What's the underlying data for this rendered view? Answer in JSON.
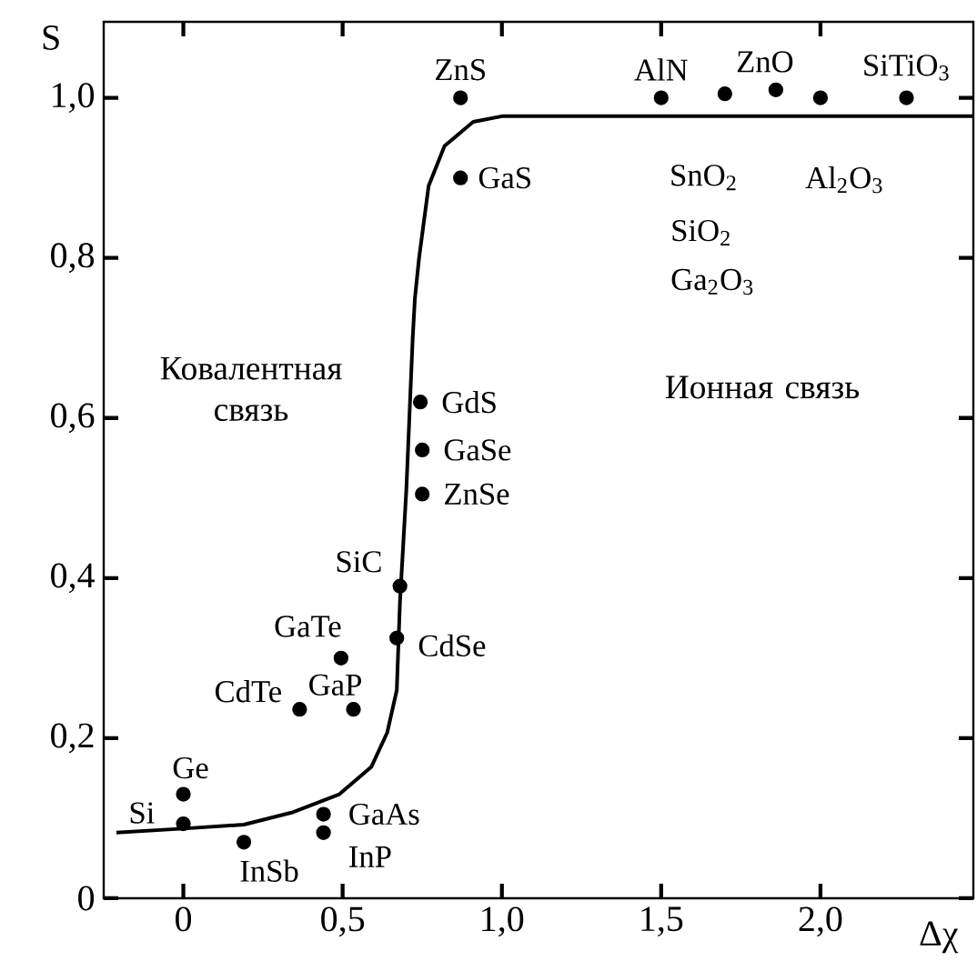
{
  "chart_data": {
    "type": "scatter",
    "xlabel": "Δχ",
    "ylabel": "S",
    "xlim": [
      -0.25,
      2.48
    ],
    "ylim": [
      0,
      1.095
    ],
    "xticks": [
      0,
      {
        "value": 0.5,
        "label": "0,5"
      },
      {
        "value": 1.0,
        "label": "1,0"
      },
      {
        "value": 1.5,
        "label": "1,5"
      },
      {
        "value": 2.0,
        "label": "2,0"
      }
    ],
    "yticks": [
      0,
      {
        "value": 0.2,
        "label": "0,2"
      },
      {
        "value": 0.4,
        "label": "0,4"
      },
      {
        "value": 0.6,
        "label": "0,6"
      },
      {
        "value": 0.8,
        "label": "0,8"
      },
      {
        "value": 1.0,
        "label": "1,0"
      }
    ],
    "marker": "circle",
    "series": [
      {
        "type": "scatter",
        "color": "#000000",
        "x": [
          0.87,
          1.5,
          1.86,
          2.27,
          1.7,
          2.0,
          0.87,
          0.744,
          0.75,
          0.75,
          0.68,
          0.67,
          0.495,
          0.365,
          0.534,
          0,
          0,
          0.19,
          0.44,
          0.44
        ],
        "values": [
          1.0,
          1.0,
          1.01,
          1.0,
          1.005,
          1.0,
          0.9,
          0.62,
          0.56,
          0.505,
          0.39,
          0.325,
          0.3,
          0.236,
          0.236,
          0.13,
          0.093,
          0.07,
          0.105,
          0.082
        ]
      },
      {
        "type": "line",
        "marker": "none",
        "color": "#000000",
        "x": [
          -0.21,
          0,
          0.19,
          0.34,
          0.49,
          0.59,
          0.64,
          0.67,
          0.68,
          0.7,
          0.72,
          0.727,
          0.74,
          0.77,
          0.82,
          0.91,
          1.0,
          2.48
        ],
        "values": [
          0.082,
          0.087,
          0.092,
          0.107,
          0.13,
          0.164,
          0.207,
          0.26,
          0.37,
          0.51,
          0.7,
          0.75,
          0.8,
          0.89,
          0.94,
          0.97,
          0.977,
          0.977
        ]
      }
    ],
    "annotations": [
      {
        "text": "ZnS",
        "x": 0.87,
        "y": 1.0
      },
      {
        "text": "AlN",
        "x": 1.5,
        "y": 1.0
      },
      {
        "text": "ZnO",
        "x": 1.86,
        "y": 1.01
      },
      {
        "text": "SiTiO$_{3}$",
        "x": 2.27,
        "y": 1.0
      },
      {
        "text": "SnO$_{2}$",
        "x": 1.7,
        "y": 1.005
      },
      "SiO$_{2}$",
      "Ga$_{2}$O$_{3}$",
      {
        "text": "Al$_{2}$O$_{3}$",
        "x": 2.0,
        "y": 1.0
      },
      {
        "text": "GaS",
        "x": 0.87,
        "y": 0.9
      },
      {
        "text": "GdS",
        "x": 0.744,
        "y": 0.62
      },
      {
        "text": "GaSe",
        "x": 0.75,
        "y": 0.56
      },
      {
        "text": "ZnSe",
        "x": 0.75,
        "y": 0.505
      },
      {
        "text": "SiC",
        "x": 0.68,
        "y": 0.39
      },
      {
        "text": "CdSe",
        "x": 0.67,
        "y": 0.325
      },
      {
        "text": "GaTe",
        "x": 0.495,
        "y": 0.3
      },
      {
        "text": "CdTe",
        "x": 0.365,
        "y": 0.236
      },
      {
        "text": "GaP",
        "x": 0.534,
        "y": 0.236
      },
      {
        "text": "Ge",
        "x": 0,
        "y": 0.13
      },
      {
        "text": "Si",
        "x": 0,
        "y": 0.093
      },
      {
        "text": "InSb",
        "x": 0.19,
        "y": 0.07
      },
      {
        "text": "GaAs",
        "x": 0.44,
        "y": 0.105
      },
      {
        "text": "InP",
        "x": 0.44,
        "y": 0.082
      },
      "Ковалентная связь",
      "Ионная связь"
    ]
  }
}
